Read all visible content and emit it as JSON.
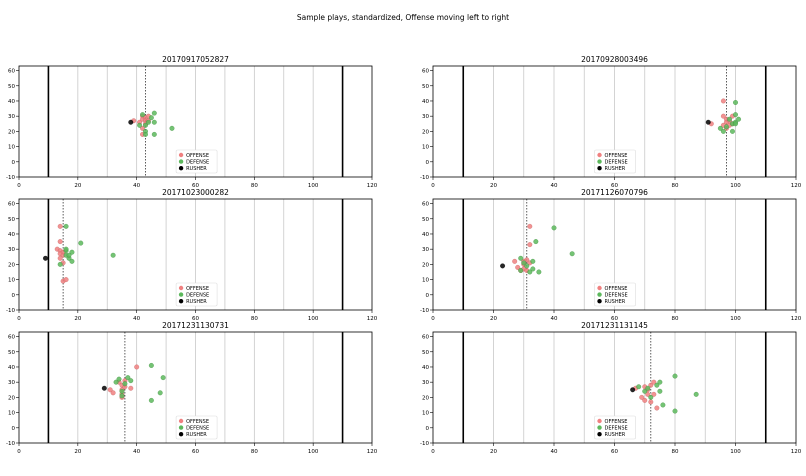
{
  "figure": {
    "suptitle": "Sample plays, standardized, Offense moving left to right"
  },
  "colors": {
    "offense": "#f08080",
    "defense": "#5cb85c",
    "rusher": "#000000",
    "endzone_line": "#000000",
    "yard_line": "#c8c8c8",
    "scrimmage_line": "#333333"
  },
  "legend": {
    "offense": "OFFENSE",
    "defense": "DEFENSE",
    "rusher": "RUSHER"
  },
  "chart_data": [
    {
      "type": "scatter",
      "title": "20170917052827",
      "xlim": [
        0,
        120
      ],
      "ylim": [
        -10,
        63
      ],
      "xticks": [
        0,
        20,
        40,
        60,
        80,
        100,
        120
      ],
      "yticks": [
        -10,
        0,
        10,
        20,
        30,
        40,
        50,
        60
      ],
      "endzone_lines": [
        10,
        110
      ],
      "yard_lines": [
        20,
        30,
        40,
        50,
        60,
        70,
        80,
        90,
        100
      ],
      "line_of_scrimmage": 43,
      "legend_position": "lower-center",
      "offense": [
        [
          39,
          27
        ],
        [
          41,
          26
        ],
        [
          42,
          30
        ],
        [
          42,
          28
        ],
        [
          43,
          29
        ],
        [
          43,
          27
        ],
        [
          43,
          25
        ],
        [
          42,
          22
        ],
        [
          42,
          18
        ],
        [
          44,
          30
        ],
        [
          44,
          27
        ]
      ],
      "defense": [
        [
          41,
          24
        ],
        [
          42,
          31
        ],
        [
          43,
          24
        ],
        [
          43,
          20
        ],
        [
          43,
          18
        ],
        [
          44,
          26
        ],
        [
          45,
          29
        ],
        [
          46,
          32
        ],
        [
          46,
          26
        ],
        [
          46,
          18
        ],
        [
          52,
          22
        ]
      ],
      "rusher": [
        [
          38,
          26
        ]
      ]
    },
    {
      "type": "scatter",
      "title": "20170928003496",
      "xlim": [
        0,
        120
      ],
      "ylim": [
        -10,
        63
      ],
      "xticks": [
        0,
        20,
        40,
        60,
        80,
        100,
        120
      ],
      "yticks": [
        -10,
        0,
        10,
        20,
        30,
        40,
        50,
        60
      ],
      "endzone_lines": [
        10,
        110
      ],
      "yard_lines": [
        20,
        30,
        40,
        50,
        60,
        70,
        80,
        90,
        100
      ],
      "line_of_scrimmage": 97,
      "legend_position": "lower-center",
      "offense": [
        [
          92,
          25
        ],
        [
          96,
          40
        ],
        [
          96,
          30
        ],
        [
          97,
          28
        ],
        [
          97,
          26
        ],
        [
          98,
          24
        ],
        [
          97,
          22
        ],
        [
          98,
          27
        ],
        [
          96,
          24
        ],
        [
          99,
          30
        ],
        [
          99,
          25
        ]
      ],
      "defense": [
        [
          95,
          22
        ],
        [
          96,
          20
        ],
        [
          97,
          23
        ],
        [
          98,
          28
        ],
        [
          99,
          25
        ],
        [
          100,
          26
        ],
        [
          99,
          20
        ],
        [
          100,
          39
        ],
        [
          100,
          31
        ],
        [
          101,
          28
        ],
        [
          100,
          25
        ]
      ],
      "rusher": [
        [
          91,
          26
        ]
      ]
    },
    {
      "type": "scatter",
      "title": "20171023000282",
      "xlim": [
        0,
        120
      ],
      "ylim": [
        -10,
        63
      ],
      "xticks": [
        0,
        20,
        40,
        60,
        80,
        100,
        120
      ],
      "yticks": [
        -10,
        0,
        10,
        20,
        30,
        40,
        50,
        60
      ],
      "endzone_lines": [
        10,
        110
      ],
      "yard_lines": [
        20,
        30,
        40,
        50,
        60,
        70,
        80,
        90,
        100
      ],
      "line_of_scrimmage": 15,
      "legend_position": "lower-center",
      "offense": [
        [
          14,
          45
        ],
        [
          14,
          35
        ],
        [
          13,
          30
        ],
        [
          14,
          29
        ],
        [
          15,
          28
        ],
        [
          14,
          27
        ],
        [
          15,
          26
        ],
        [
          14,
          24
        ],
        [
          15,
          21
        ],
        [
          15,
          9
        ],
        [
          16,
          10
        ]
      ],
      "defense": [
        [
          16,
          45
        ],
        [
          14,
          20
        ],
        [
          16,
          26
        ],
        [
          17,
          24
        ],
        [
          18,
          28
        ],
        [
          18,
          22
        ],
        [
          17,
          26
        ],
        [
          16,
          29
        ],
        [
          21,
          34
        ],
        [
          32,
          26
        ],
        [
          16,
          30
        ]
      ],
      "rusher": [
        [
          9,
          24
        ]
      ]
    },
    {
      "type": "scatter",
      "title": "20171126070796",
      "xlim": [
        0,
        120
      ],
      "ylim": [
        -10,
        63
      ],
      "xticks": [
        0,
        20,
        40,
        60,
        80,
        100,
        120
      ],
      "yticks": [
        -10,
        0,
        10,
        20,
        30,
        40,
        50,
        60
      ],
      "endzone_lines": [
        10,
        110
      ],
      "yard_lines": [
        20,
        30,
        40,
        50,
        60,
        70,
        80,
        90,
        100
      ],
      "line_of_scrimmage": 31,
      "legend_position": "lower-center",
      "offense": [
        [
          27,
          22
        ],
        [
          28,
          18
        ],
        [
          29,
          16
        ],
        [
          30,
          20
        ],
        [
          30,
          17
        ],
        [
          31,
          23
        ],
        [
          31,
          16
        ],
        [
          32,
          21
        ],
        [
          32,
          45
        ],
        [
          32,
          33
        ],
        [
          30,
          22
        ]
      ],
      "defense": [
        [
          29,
          24
        ],
        [
          30,
          21
        ],
        [
          31,
          19
        ],
        [
          32,
          15
        ],
        [
          33,
          17
        ],
        [
          33,
          22
        ],
        [
          34,
          35
        ],
        [
          35,
          15
        ],
        [
          40,
          44
        ],
        [
          46,
          27
        ],
        [
          29,
          16
        ]
      ],
      "rusher": [
        [
          23,
          19
        ]
      ]
    },
    {
      "type": "scatter",
      "title": "20171231130731",
      "xlim": [
        0,
        120
      ],
      "ylim": [
        -10,
        63
      ],
      "xticks": [
        0,
        20,
        40,
        60,
        80,
        100,
        120
      ],
      "yticks": [
        -10,
        0,
        10,
        20,
        30,
        40,
        50,
        60
      ],
      "endzone_lines": [
        10,
        110
      ],
      "yard_lines": [
        20,
        30,
        40,
        50,
        60,
        70,
        80,
        90,
        100
      ],
      "line_of_scrimmage": 36,
      "legend_position": "lower-center",
      "offense": [
        [
          31,
          25
        ],
        [
          32,
          23
        ],
        [
          34,
          30
        ],
        [
          35,
          28
        ],
        [
          35,
          25
        ],
        [
          35,
          22
        ],
        [
          36,
          31
        ],
        [
          36,
          27
        ],
        [
          35,
          20
        ],
        [
          40,
          40
        ],
        [
          38,
          26
        ]
      ],
      "defense": [
        [
          33,
          30
        ],
        [
          34,
          32
        ],
        [
          35,
          24
        ],
        [
          35,
          21
        ],
        [
          36,
          29
        ],
        [
          37,
          33
        ],
        [
          38,
          31
        ],
        [
          45,
          41
        ],
        [
          45,
          18
        ],
        [
          48,
          23
        ],
        [
          49,
          33
        ]
      ],
      "rusher": [
        [
          29,
          26
        ]
      ]
    },
    {
      "type": "scatter",
      "title": "20171231131145",
      "xlim": [
        0,
        120
      ],
      "ylim": [
        -10,
        63
      ],
      "xticks": [
        0,
        20,
        40,
        60,
        80,
        100,
        120
      ],
      "yticks": [
        -10,
        0,
        10,
        20,
        30,
        40,
        50,
        60
      ],
      "endzone_lines": [
        10,
        110
      ],
      "yard_lines": [
        20,
        30,
        40,
        50,
        60,
        70,
        80,
        90,
        100
      ],
      "line_of_scrimmage": 72,
      "legend_position": "lower-center",
      "offense": [
        [
          67,
          26
        ],
        [
          69,
          20
        ],
        [
          70,
          27
        ],
        [
          71,
          25
        ],
        [
          71,
          22
        ],
        [
          72,
          28
        ],
        [
          72,
          17
        ],
        [
          73,
          30
        ],
        [
          73,
          22
        ],
        [
          74,
          13
        ],
        [
          70,
          18
        ]
      ],
      "defense": [
        [
          68,
          27
        ],
        [
          70,
          24
        ],
        [
          71,
          26
        ],
        [
          72,
          20
        ],
        [
          74,
          28
        ],
        [
          75,
          30
        ],
        [
          75,
          24
        ],
        [
          76,
          15
        ],
        [
          80,
          34
        ],
        [
          80,
          11
        ],
        [
          87,
          22
        ]
      ],
      "rusher": [
        [
          66,
          25
        ]
      ]
    }
  ]
}
